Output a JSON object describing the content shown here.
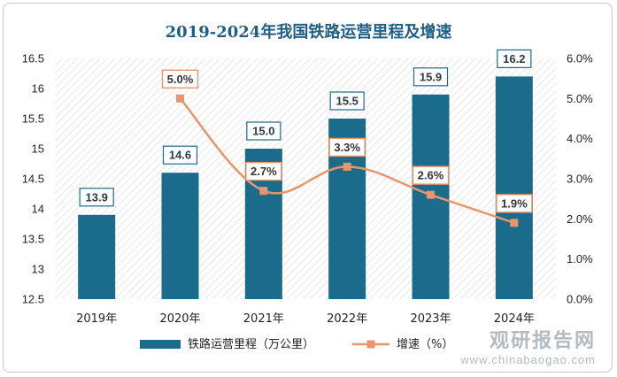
{
  "chart_data": {
    "type": "bar+line",
    "title": "2019-2024年我国铁路运营里程及增速",
    "categories": [
      "2019年",
      "2020年",
      "2021年",
      "2022年",
      "2023年",
      "2024年"
    ],
    "series": [
      {
        "name": "铁路运营里程（万公里）",
        "kind": "bar",
        "axis": "left",
        "values": [
          13.9,
          14.6,
          15.0,
          15.5,
          15.9,
          16.2
        ],
        "labels": [
          "13.9",
          "14.6",
          "15.0",
          "15.5",
          "15.9",
          "16.2"
        ],
        "color": "#1b6b8c"
      },
      {
        "name": "增速（%）",
        "kind": "line",
        "axis": "right",
        "values": [
          null,
          5.0,
          2.7,
          3.3,
          2.6,
          1.9
        ],
        "labels": [
          null,
          "5.0%",
          "2.7%",
          "3.3%",
          "2.6%",
          "1.9%"
        ],
        "color": "#e8956b"
      }
    ],
    "y_left": {
      "min": 12.5,
      "max": 16.5,
      "ticks": [
        12.5,
        13,
        13.5,
        14,
        14.5,
        15,
        15.5,
        16,
        16.5
      ],
      "tick_labels": [
        "12.5",
        "13",
        "13.5",
        "14",
        "14.5",
        "15",
        "15.5",
        "16",
        "16.5"
      ]
    },
    "y_right": {
      "min": 0,
      "max": 6,
      "ticks": [
        0,
        1,
        2,
        3,
        4,
        5,
        6
      ],
      "tick_labels": [
        "0.0%",
        "1.0%",
        "2.0%",
        "3.0%",
        "4.0%",
        "5.0%",
        "6.0%"
      ]
    },
    "legend_position": "bottom",
    "colors": {
      "title": "#1f5f86",
      "bar": "#1b6b8c",
      "line": "#e8956b"
    }
  },
  "watermark": {
    "main": "观研报告网",
    "sub": "www.chinabaogao.com"
  }
}
